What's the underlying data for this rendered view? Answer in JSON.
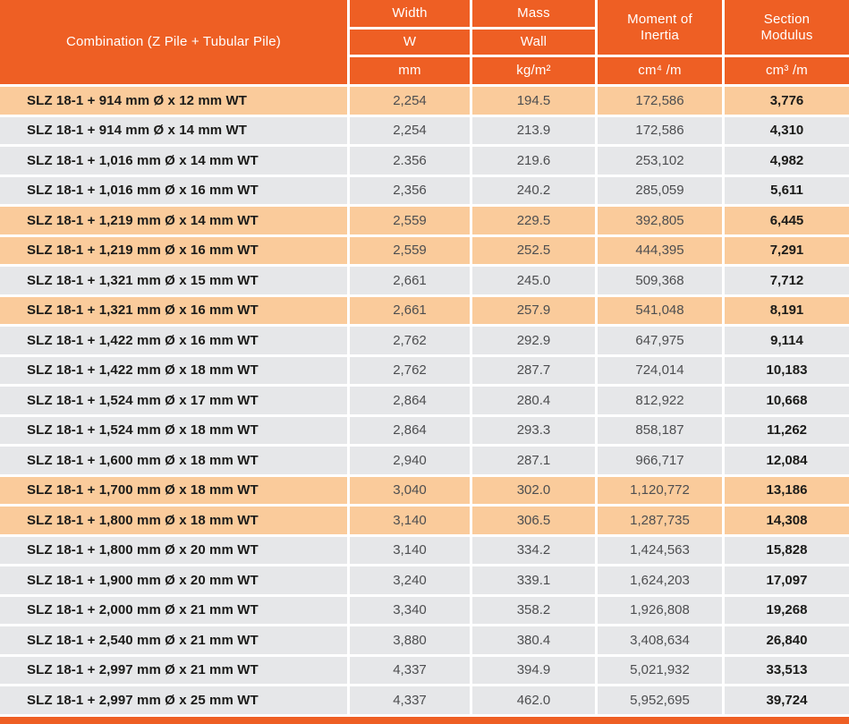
{
  "colors": {
    "header_orange": "#EE5F24",
    "row_highlight_peach": "#FACB9B",
    "row_gray": "#E6E7E9",
    "label_text": "#1B1B19",
    "value_text": "#4D4E50"
  },
  "header": {
    "combination": "Combination (Z Pile + Tubular Pile)",
    "width_title": "Width",
    "width_symbol": "W",
    "width_unit": "mm",
    "mass_title": "Mass",
    "mass_symbol": "Wall",
    "mass_unit": "kg/m²",
    "inertia_title": "Moment of Inertia",
    "inertia_unit": "cm⁴ /m",
    "modulus_title": "Section Modulus",
    "modulus_unit": "cm³ /m"
  },
  "rows": [
    {
      "label": "SLZ 18-1 + 914 mm Ø x 12 mm WT",
      "width": "2,254",
      "mass": "194.5",
      "inertia": "172,586",
      "modulus": "3,776",
      "highlight": true
    },
    {
      "label": "SLZ 18-1 + 914 mm Ø x 14 mm WT",
      "width": "2,254",
      "mass": "213.9",
      "inertia": "172,586",
      "modulus": "4,310",
      "highlight": false
    },
    {
      "label": "SLZ 18-1 + 1,016 mm Ø x 14 mm WT",
      "width": "2.356",
      "mass": "219.6",
      "inertia": "253,102",
      "modulus": "4,982",
      "highlight": false
    },
    {
      "label": "SLZ 18-1 + 1,016 mm Ø x 16 mm WT",
      "width": "2,356",
      "mass": "240.2",
      "inertia": "285,059",
      "modulus": "5,611",
      "highlight": false
    },
    {
      "label": "SLZ 18-1 + 1,219 mm Ø x 14 mm WT",
      "width": "2,559",
      "mass": "229.5",
      "inertia": "392,805",
      "modulus": "6,445",
      "highlight": true
    },
    {
      "label": "SLZ 18-1 + 1,219 mm Ø x 16 mm WT",
      "width": "2,559",
      "mass": "252.5",
      "inertia": "444,395",
      "modulus": "7,291",
      "highlight": true
    },
    {
      "label": "SLZ 18-1 + 1,321 mm Ø x 15 mm WT",
      "width": "2,661",
      "mass": "245.0",
      "inertia": "509,368",
      "modulus": "7,712",
      "highlight": false
    },
    {
      "label": "SLZ 18-1 + 1,321 mm Ø x 16 mm WT",
      "width": "2,661",
      "mass": "257.9",
      "inertia": "541,048",
      "modulus": "8,191",
      "highlight": true
    },
    {
      "label": "SLZ 18-1 + 1,422 mm Ø x 16 mm WT",
      "width": "2,762",
      "mass": "292.9",
      "inertia": "647,975",
      "modulus": "9,114",
      "highlight": false
    },
    {
      "label": "SLZ 18-1 + 1,422 mm Ø x 18 mm WT",
      "width": "2,762",
      "mass": "287.7",
      "inertia": "724,014",
      "modulus": "10,183",
      "highlight": false
    },
    {
      "label": "SLZ 18-1 + 1,524 mm Ø x 17 mm WT",
      "width": "2,864",
      "mass": "280.4",
      "inertia": "812,922",
      "modulus": "10,668",
      "highlight": false
    },
    {
      "label": "SLZ 18-1 + 1,524 mm Ø x 18 mm WT",
      "width": "2,864",
      "mass": "293.3",
      "inertia": "858,187",
      "modulus": "11,262",
      "highlight": false
    },
    {
      "label": "SLZ 18-1 + 1,600 mm Ø x 18 mm WT",
      "width": "2,940",
      "mass": "287.1",
      "inertia": "966,717",
      "modulus": "12,084",
      "highlight": false
    },
    {
      "label": "SLZ 18-1 + 1,700 mm Ø x 18 mm WT",
      "width": "3,040",
      "mass": "302.0",
      "inertia": "1,120,772",
      "modulus": "13,186",
      "highlight": true
    },
    {
      "label": "SLZ 18-1 + 1,800 mm Ø x 18 mm WT",
      "width": "3,140",
      "mass": "306.5",
      "inertia": "1,287,735",
      "modulus": "14,308",
      "highlight": true
    },
    {
      "label": "SLZ 18-1 + 1,800 mm Ø x 20 mm WT",
      "width": "3,140",
      "mass": "334.2",
      "inertia": "1,424,563",
      "modulus": "15,828",
      "highlight": false
    },
    {
      "label": "SLZ 18-1 + 1,900 mm Ø x 20 mm WT",
      "width": "3,240",
      "mass": "339.1",
      "inertia": "1,624,203",
      "modulus": "17,097",
      "highlight": false
    },
    {
      "label": "SLZ 18-1 + 2,000 mm Ø x 21 mm WT",
      "width": "3,340",
      "mass": "358.2",
      "inertia": "1,926,808",
      "modulus": "19,268",
      "highlight": false
    },
    {
      "label": "SLZ 18-1 + 2,540 mm Ø x 21 mm WT",
      "width": "3,880",
      "mass": "380.4",
      "inertia": "3,408,634",
      "modulus": "26,840",
      "highlight": false
    },
    {
      "label": "SLZ 18-1 + 2,997 mm Ø x 21 mm WT",
      "width": "4,337",
      "mass": "394.9",
      "inertia": "5,021,932",
      "modulus": "33,513",
      "highlight": false
    },
    {
      "label": "SLZ 18-1 + 2,997 mm Ø x 25 mm WT",
      "width": "4,337",
      "mass": "462.0",
      "inertia": "5,952,695",
      "modulus": "39,724",
      "highlight": false
    }
  ]
}
